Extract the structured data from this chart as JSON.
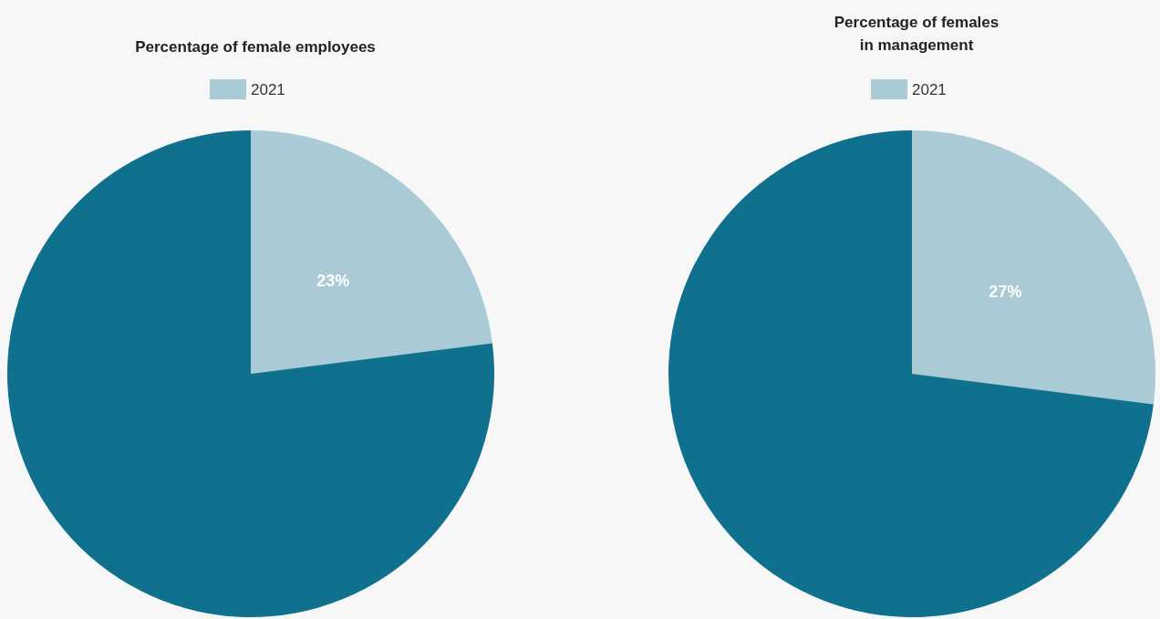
{
  "chart_data": [
    {
      "type": "pie",
      "title": "Percentage of female employees",
      "categories": [
        "2021",
        null
      ],
      "values": [
        23,
        77
      ],
      "colors": [
        "#aacad6",
        "#10718e"
      ],
      "value_labels": [
        "23%",
        null
      ],
      "legend": "top"
    },
    {
      "type": "pie",
      "title": "Percentage of females\nin management",
      "categories": [
        "2021",
        null
      ],
      "values": [
        27,
        73
      ],
      "colors": [
        "#aacad6",
        "#10718e"
      ],
      "value_labels": [
        "27%",
        null
      ],
      "legend": "top"
    }
  ]
}
